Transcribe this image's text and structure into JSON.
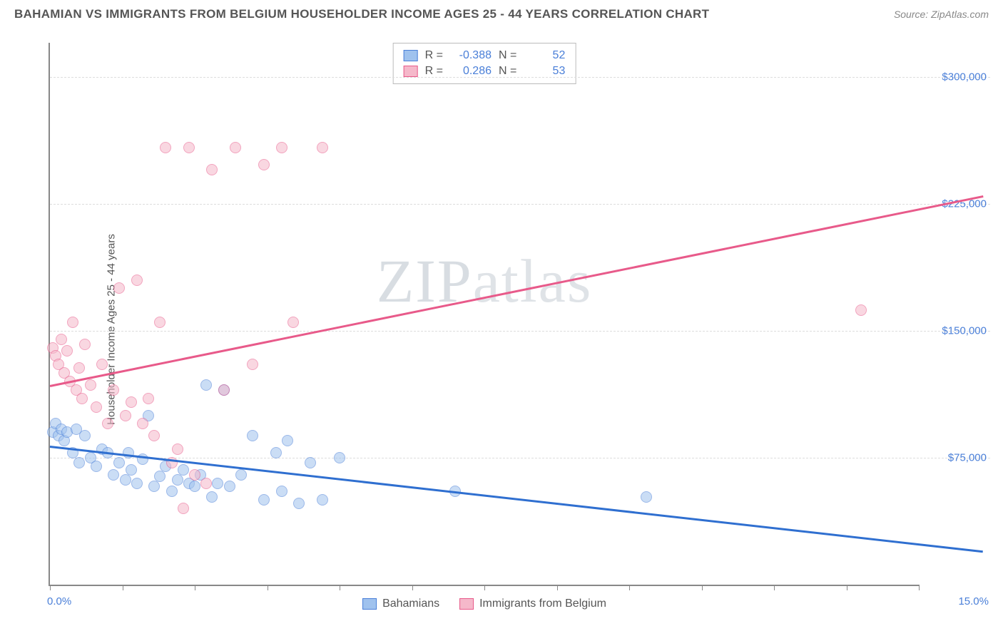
{
  "title": "BAHAMIAN VS IMMIGRANTS FROM BELGIUM HOUSEHOLDER INCOME AGES 25 - 44 YEARS CORRELATION CHART",
  "source": "Source: ZipAtlas.com",
  "watermark": "ZIPatlas",
  "chart": {
    "type": "scatter",
    "ylabel": "Householder Income Ages 25 - 44 years",
    "xlim": [
      0,
      15
    ],
    "ylim": [
      0,
      320000
    ],
    "x_tick_positions": [
      0,
      1.25,
      2.5,
      3.75,
      5,
      6.25,
      7.5,
      8.75,
      10,
      11.25,
      12.5,
      13.75,
      15
    ],
    "x_min_label": "0.0%",
    "x_max_label": "15.0%",
    "y_gridlines": [
      75000,
      150000,
      225000,
      300000
    ],
    "y_tick_labels": [
      "$75,000",
      "$150,000",
      "$225,000",
      "$300,000"
    ],
    "grid_color": "#dddddd",
    "axis_color": "#888888",
    "background": "#ffffff",
    "label_color": "#4a7fd8",
    "point_radius": 8,
    "point_opacity": 0.55,
    "series": [
      {
        "name": "Bahamians",
        "fill": "#9fc2ee",
        "stroke": "#4a7fd8",
        "trend_color": "#2f6fd0",
        "R": "-0.388",
        "N": "52",
        "trend": {
          "x1": 0,
          "y1": 82000,
          "x2": 15,
          "y2": 20000
        },
        "points": [
          [
            0.05,
            90000
          ],
          [
            0.1,
            95000
          ],
          [
            0.15,
            88000
          ],
          [
            0.2,
            92000
          ],
          [
            0.25,
            85000
          ],
          [
            0.3,
            90000
          ],
          [
            0.4,
            78000
          ],
          [
            0.45,
            92000
          ],
          [
            0.5,
            72000
          ],
          [
            0.6,
            88000
          ],
          [
            0.7,
            75000
          ],
          [
            0.8,
            70000
          ],
          [
            0.9,
            80000
          ],
          [
            1.0,
            78000
          ],
          [
            1.1,
            65000
          ],
          [
            1.2,
            72000
          ],
          [
            1.3,
            62000
          ],
          [
            1.35,
            78000
          ],
          [
            1.4,
            68000
          ],
          [
            1.5,
            60000
          ],
          [
            1.6,
            74000
          ],
          [
            1.7,
            100000
          ],
          [
            1.8,
            58000
          ],
          [
            1.9,
            64000
          ],
          [
            2.0,
            70000
          ],
          [
            2.1,
            55000
          ],
          [
            2.2,
            62000
          ],
          [
            2.3,
            68000
          ],
          [
            2.4,
            60000
          ],
          [
            2.5,
            58000
          ],
          [
            2.6,
            65000
          ],
          [
            2.7,
            118000
          ],
          [
            2.8,
            52000
          ],
          [
            2.9,
            60000
          ],
          [
            3.0,
            115000
          ],
          [
            3.1,
            58000
          ],
          [
            3.3,
            65000
          ],
          [
            3.5,
            88000
          ],
          [
            3.7,
            50000
          ],
          [
            3.9,
            78000
          ],
          [
            4.0,
            55000
          ],
          [
            4.1,
            85000
          ],
          [
            4.3,
            48000
          ],
          [
            4.5,
            72000
          ],
          [
            4.7,
            50000
          ],
          [
            5.0,
            75000
          ],
          [
            7.0,
            55000
          ],
          [
            10.3,
            52000
          ]
        ]
      },
      {
        "name": "Immigrants from Belgium",
        "fill": "#f5b8ca",
        "stroke": "#e85a8a",
        "trend_color": "#e85a8a",
        "R": "0.286",
        "N": "53",
        "trend": {
          "x1": 0,
          "y1": 118000,
          "x2": 15,
          "y2": 230000
        },
        "points": [
          [
            0.05,
            140000
          ],
          [
            0.1,
            135000
          ],
          [
            0.15,
            130000
          ],
          [
            0.2,
            145000
          ],
          [
            0.25,
            125000
          ],
          [
            0.3,
            138000
          ],
          [
            0.35,
            120000
          ],
          [
            0.4,
            155000
          ],
          [
            0.45,
            115000
          ],
          [
            0.5,
            128000
          ],
          [
            0.55,
            110000
          ],
          [
            0.6,
            142000
          ],
          [
            0.7,
            118000
          ],
          [
            0.8,
            105000
          ],
          [
            0.9,
            130000
          ],
          [
            1.0,
            95000
          ],
          [
            1.1,
            115000
          ],
          [
            1.2,
            175000
          ],
          [
            1.3,
            100000
          ],
          [
            1.4,
            108000
          ],
          [
            1.5,
            180000
          ],
          [
            1.6,
            95000
          ],
          [
            1.7,
            110000
          ],
          [
            1.8,
            88000
          ],
          [
            1.9,
            155000
          ],
          [
            2.0,
            258000
          ],
          [
            2.1,
            72000
          ],
          [
            2.2,
            80000
          ],
          [
            2.3,
            45000
          ],
          [
            2.4,
            258000
          ],
          [
            2.5,
            65000
          ],
          [
            2.7,
            60000
          ],
          [
            2.8,
            245000
          ],
          [
            3.0,
            115000
          ],
          [
            3.2,
            258000
          ],
          [
            3.5,
            130000
          ],
          [
            3.7,
            248000
          ],
          [
            4.0,
            258000
          ],
          [
            4.2,
            155000
          ],
          [
            4.7,
            258000
          ],
          [
            14.0,
            162000
          ]
        ]
      }
    ],
    "legend": {
      "items": [
        "Bahamians",
        "Immigrants from Belgium"
      ]
    }
  }
}
